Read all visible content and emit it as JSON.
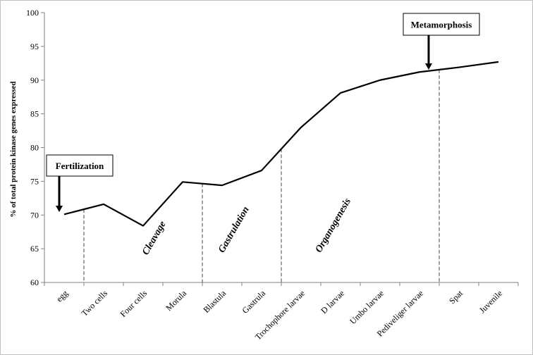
{
  "chart_data": {
    "type": "line",
    "title": "",
    "xlabel": "",
    "ylabel": "% of total protein kinase genes expressed",
    "ylim": [
      60,
      100
    ],
    "yticks": [
      60,
      65,
      70,
      75,
      80,
      85,
      90,
      95,
      100
    ],
    "grid": false,
    "legend": "none",
    "categories": [
      "egg",
      "Two cells",
      "Four cells",
      "Morula",
      "Blastula",
      "Gastrula",
      "Trochophore larvae",
      "D larvae",
      "Umbo larvae",
      "Pediveliger larvae",
      "Spat",
      "Juvenile"
    ],
    "series": [
      {
        "values": [
          70.1,
          71.6,
          68.4,
          74.9,
          74.4,
          76.6,
          83.0,
          88.1,
          90.0,
          91.2,
          91.9,
          92.7
        ],
        "color": "#000000"
      }
    ],
    "phases": [
      "Cleavage",
      "Gastrulation",
      "Organogenesis"
    ],
    "callouts": [
      "Fertilization",
      "Metamorphosis"
    ]
  }
}
